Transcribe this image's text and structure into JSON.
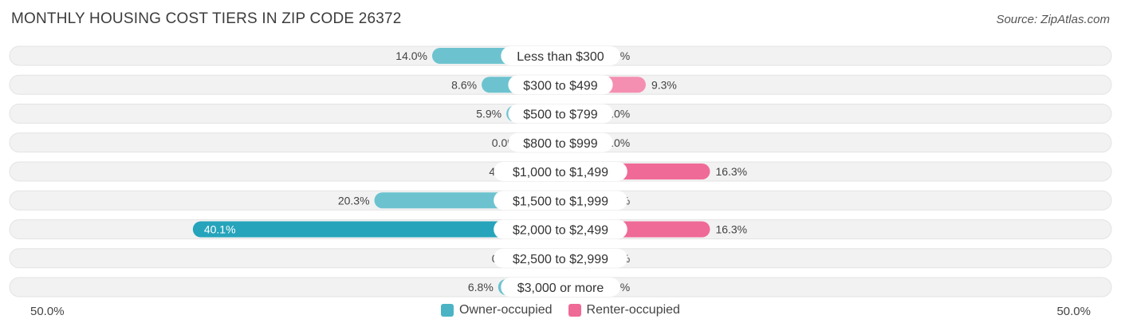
{
  "title": "MONTHLY HOUSING COST TIERS IN ZIP CODE 26372",
  "source": "Source: ZipAtlas.com",
  "axis": {
    "left_label": "50.0%",
    "right_label": "50.0%"
  },
  "colors": {
    "owner": "#6cc3cf",
    "owner_strong": "#26a4bb",
    "renter": "#f48fb1",
    "renter_strong": "#ef6a97",
    "row_bg": "#f2f2f2"
  },
  "legend": [
    {
      "label": "Owner-occupied",
      "color": "#4ab4c4"
    },
    {
      "label": "Renter-occupied",
      "color": "#ef6a97"
    }
  ],
  "chart_data": {
    "type": "bar",
    "orientation": "diverging-horizontal",
    "title": "MONTHLY HOUSING COST TIERS IN ZIP CODE 26372",
    "xlim": [
      -50,
      50
    ],
    "categories": [
      "Less than $300",
      "$300 to $499",
      "$500 to $799",
      "$800 to $999",
      "$1,000 to $1,499",
      "$1,500 to $1,999",
      "$2,000 to $2,499",
      "$2,500 to $2,999",
      "$3,000 or more"
    ],
    "series": [
      {
        "name": "Owner-occupied",
        "values": [
          14.0,
          8.6,
          5.9,
          0.0,
          4.5,
          20.3,
          40.1,
          0.0,
          6.8
        ],
        "labels": [
          "14.0%",
          "8.6%",
          "5.9%",
          "0.0%",
          "4.5%",
          "20.3%",
          "40.1%",
          "0.0%",
          "6.8%"
        ]
      },
      {
        "name": "Renter-occupied",
        "values": [
          0.0,
          9.3,
          0.0,
          0.0,
          16.3,
          0.0,
          16.3,
          0.0,
          0.0
        ],
        "labels": [
          "0.0%",
          "9.3%",
          "0.0%",
          "0.0%",
          "16.3%",
          "0.0%",
          "16.3%",
          "0.0%",
          "0.0%"
        ]
      }
    ],
    "legend_position": "bottom-center",
    "grid": false
  }
}
